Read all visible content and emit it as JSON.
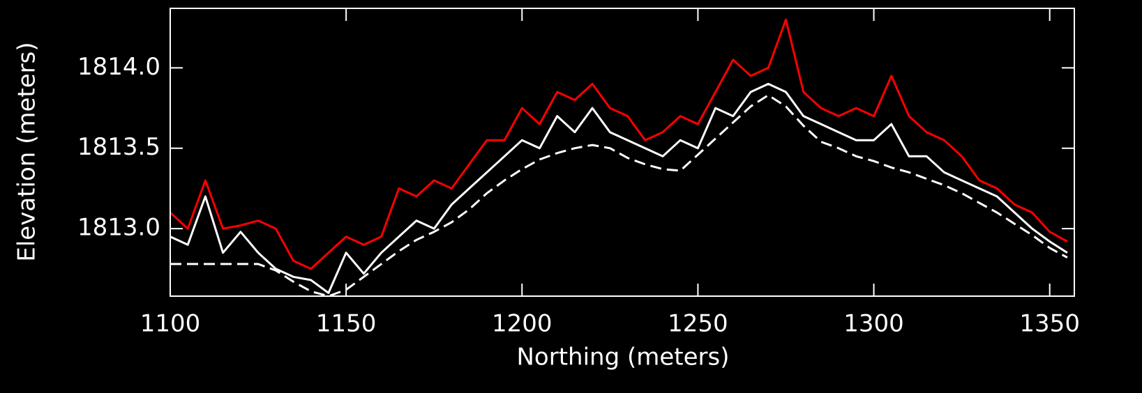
{
  "chart_data": {
    "type": "line",
    "xlabel": "Northing (meters)",
    "ylabel": "Elevation (meters)",
    "x": [
      1100,
      1105,
      1110,
      1115,
      1120,
      1125,
      1130,
      1135,
      1140,
      1145,
      1150,
      1155,
      1160,
      1165,
      1170,
      1175,
      1180,
      1185,
      1190,
      1195,
      1200,
      1205,
      1210,
      1215,
      1220,
      1225,
      1230,
      1235,
      1240,
      1245,
      1250,
      1255,
      1260,
      1265,
      1270,
      1275,
      1280,
      1285,
      1290,
      1295,
      1300,
      1305,
      1310,
      1315,
      1320,
      1325,
      1330,
      1335,
      1340,
      1345,
      1350,
      1355
    ],
    "series": [
      {
        "color": "#ffffff",
        "dash": true,
        "values": [
          1812.78,
          1812.78,
          1812.78,
          1812.78,
          1812.78,
          1812.78,
          1812.74,
          1812.67,
          1812.61,
          1812.58,
          1812.62,
          1812.7,
          1812.78,
          1812.86,
          1812.93,
          1812.98,
          1813.04,
          1813.12,
          1813.22,
          1813.3,
          1813.37,
          1813.43,
          1813.47,
          1813.5,
          1813.52,
          1813.5,
          1813.44,
          1813.4,
          1813.37,
          1813.36,
          1813.46,
          1813.56,
          1813.66,
          1813.76,
          1813.83,
          1813.76,
          1813.64,
          1813.54,
          1813.5,
          1813.45,
          1813.42,
          1813.38,
          1813.35,
          1813.31,
          1813.27,
          1813.22,
          1813.16,
          1813.1,
          1813.03,
          1812.96,
          1812.88,
          1812.82
        ]
      },
      {
        "color": "#ffffff",
        "dash": false,
        "values": [
          1812.95,
          1812.9,
          1813.2,
          1812.85,
          1812.98,
          1812.85,
          1812.75,
          1812.7,
          1812.68,
          1812.6,
          1812.85,
          1812.72,
          1812.85,
          1812.95,
          1813.05,
          1813.0,
          1813.15,
          1813.25,
          1813.35,
          1813.45,
          1813.55,
          1813.5,
          1813.7,
          1813.6,
          1813.75,
          1813.6,
          1813.55,
          1813.5,
          1813.45,
          1813.55,
          1813.5,
          1813.75,
          1813.7,
          1813.85,
          1813.9,
          1813.85,
          1813.7,
          1813.65,
          1813.6,
          1813.55,
          1813.55,
          1813.65,
          1813.45,
          1813.45,
          1813.35,
          1813.3,
          1813.25,
          1813.2,
          1813.1,
          1813.0,
          1812.92,
          1812.85
        ]
      },
      {
        "color": "#ff0000",
        "dash": false,
        "values": [
          1813.1,
          1813.0,
          1813.3,
          1813.0,
          1813.02,
          1813.05,
          1813.0,
          1812.8,
          1812.75,
          1812.85,
          1812.95,
          1812.9,
          1812.95,
          1813.25,
          1813.2,
          1813.3,
          1813.25,
          1813.4,
          1813.55,
          1813.55,
          1813.75,
          1813.65,
          1813.85,
          1813.8,
          1813.9,
          1813.75,
          1813.7,
          1813.55,
          1813.6,
          1813.7,
          1813.65,
          1813.85,
          1814.05,
          1813.95,
          1814.0,
          1814.3,
          1813.85,
          1813.75,
          1813.7,
          1813.75,
          1813.7,
          1813.95,
          1813.7,
          1813.6,
          1813.55,
          1813.45,
          1813.3,
          1813.25,
          1813.15,
          1813.1,
          1812.98,
          1812.92
        ]
      }
    ],
    "xlim": [
      1100,
      1357
    ],
    "xticks": [
      1100,
      1150,
      1200,
      1250,
      1300,
      1350
    ],
    "ylim": [
      1812.58,
      1814.37
    ],
    "yticks": [
      {
        "value": 1813,
        "label": "1813.0"
      },
      {
        "value": 1813.5,
        "label": "1813.5"
      },
      {
        "value": 1814,
        "label": "1814.0"
      }
    ]
  }
}
